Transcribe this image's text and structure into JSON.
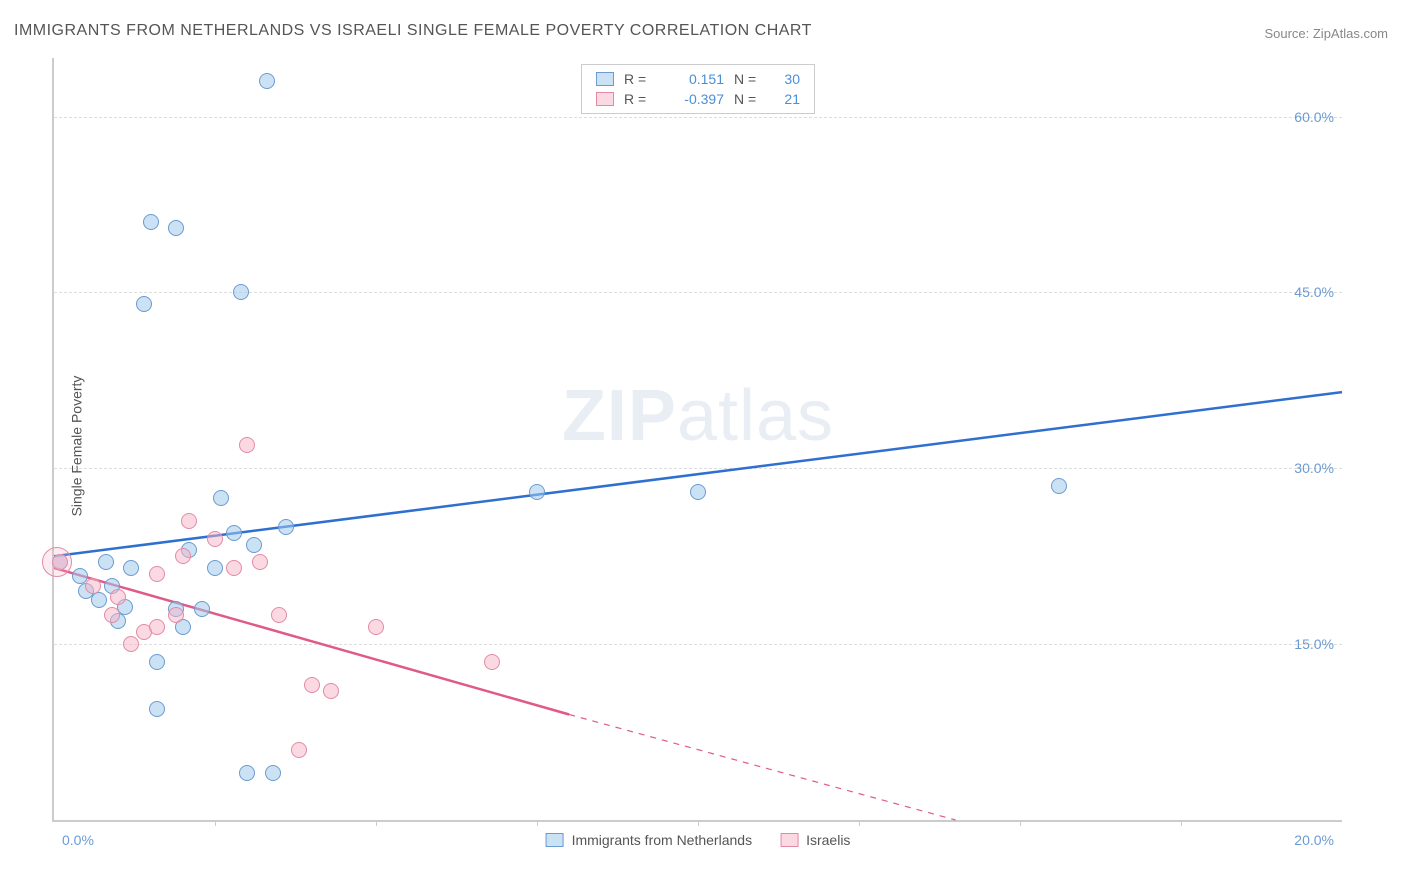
{
  "title": "IMMIGRANTS FROM NETHERLANDS VS ISRAELI SINGLE FEMALE POVERTY CORRELATION CHART",
  "source": "Source: ZipAtlas.com",
  "watermark_a": "ZIP",
  "watermark_b": "atlas",
  "chart": {
    "type": "scatter",
    "ylabel": "Single Female Poverty",
    "xlim": [
      0,
      20
    ],
    "ylim": [
      0,
      65
    ],
    "yticks": [
      15.0,
      30.0,
      45.0,
      60.0
    ],
    "ytick_labels": [
      "15.0%",
      "30.0%",
      "45.0%",
      "60.0%"
    ],
    "xtick_positions": [
      2.5,
      5.0,
      7.5,
      10.0,
      12.5,
      15.0,
      17.5
    ],
    "x_end_labels": [
      "0.0%",
      "20.0%"
    ],
    "background_color": "#ffffff",
    "grid_color": "#dddddd",
    "axis_color": "#cccccc",
    "tick_label_color": "#6b9bd1",
    "label_color": "#555555",
    "label_fontsize": 14,
    "title_fontsize": 16,
    "series": [
      {
        "name": "Immigrants from Netherlands",
        "short": "blue",
        "point_fill": "rgba(160,200,235,0.55)",
        "point_stroke": "#6b9bd1",
        "line_color": "#2f6fd0",
        "r_value": "0.151",
        "n_value": "30",
        "marker_radius": 8,
        "points": [
          [
            0.1,
            22.0
          ],
          [
            0.4,
            20.8
          ],
          [
            0.5,
            19.5
          ],
          [
            0.7,
            18.8
          ],
          [
            0.8,
            22.0
          ],
          [
            0.9,
            20.0
          ],
          [
            1.0,
            17.0
          ],
          [
            1.1,
            18.2
          ],
          [
            1.2,
            21.5
          ],
          [
            1.4,
            44.0
          ],
          [
            1.5,
            51.0
          ],
          [
            1.6,
            13.5
          ],
          [
            1.6,
            9.5
          ],
          [
            1.9,
            18.0
          ],
          [
            1.9,
            50.5
          ],
          [
            2.0,
            16.5
          ],
          [
            2.1,
            23.0
          ],
          [
            2.3,
            18.0
          ],
          [
            2.5,
            21.5
          ],
          [
            2.6,
            27.5
          ],
          [
            2.8,
            24.5
          ],
          [
            2.9,
            45.0
          ],
          [
            3.0,
            4.0
          ],
          [
            3.1,
            23.5
          ],
          [
            3.3,
            63.0
          ],
          [
            3.4,
            4.0
          ],
          [
            3.6,
            25.0
          ],
          [
            7.5,
            28.0
          ],
          [
            10.0,
            28.0
          ],
          [
            15.6,
            28.5
          ]
        ],
        "regression": {
          "x1": 0,
          "y1": 22.5,
          "x2": 20,
          "y2": 36.5
        }
      },
      {
        "name": "Israelis",
        "short": "pink",
        "point_fill": "rgba(245,180,200,0.50)",
        "point_stroke": "#e48aa6",
        "line_color": "#e05a87",
        "r_value": "-0.397",
        "n_value": "21",
        "marker_radius": 8,
        "points": [
          [
            0.1,
            22.0
          ],
          [
            0.6,
            20.0
          ],
          [
            0.9,
            17.5
          ],
          [
            1.0,
            19.0
          ],
          [
            1.2,
            15.0
          ],
          [
            1.4,
            16.0
          ],
          [
            1.6,
            16.5
          ],
          [
            1.6,
            21.0
          ],
          [
            1.9,
            17.5
          ],
          [
            2.0,
            22.5
          ],
          [
            2.1,
            25.5
          ],
          [
            2.5,
            24.0
          ],
          [
            2.8,
            21.5
          ],
          [
            3.0,
            32.0
          ],
          [
            3.2,
            22.0
          ],
          [
            3.5,
            17.5
          ],
          [
            3.8,
            6.0
          ],
          [
            4.0,
            11.5
          ],
          [
            4.3,
            11.0
          ],
          [
            5.0,
            16.5
          ],
          [
            6.8,
            13.5
          ]
        ],
        "regression_solid": {
          "x1": 0,
          "y1": 21.5,
          "x2": 8.0,
          "y2": 9.0
        },
        "regression_dashed": {
          "x1": 8.0,
          "y1": 9.0,
          "x2": 14.0,
          "y2": 0.0
        }
      }
    ],
    "legend_top": {
      "r_label": "R =",
      "n_label": "N ="
    },
    "legend_bottom_labels": [
      "Immigrants from Netherlands",
      "Israelis"
    ]
  }
}
